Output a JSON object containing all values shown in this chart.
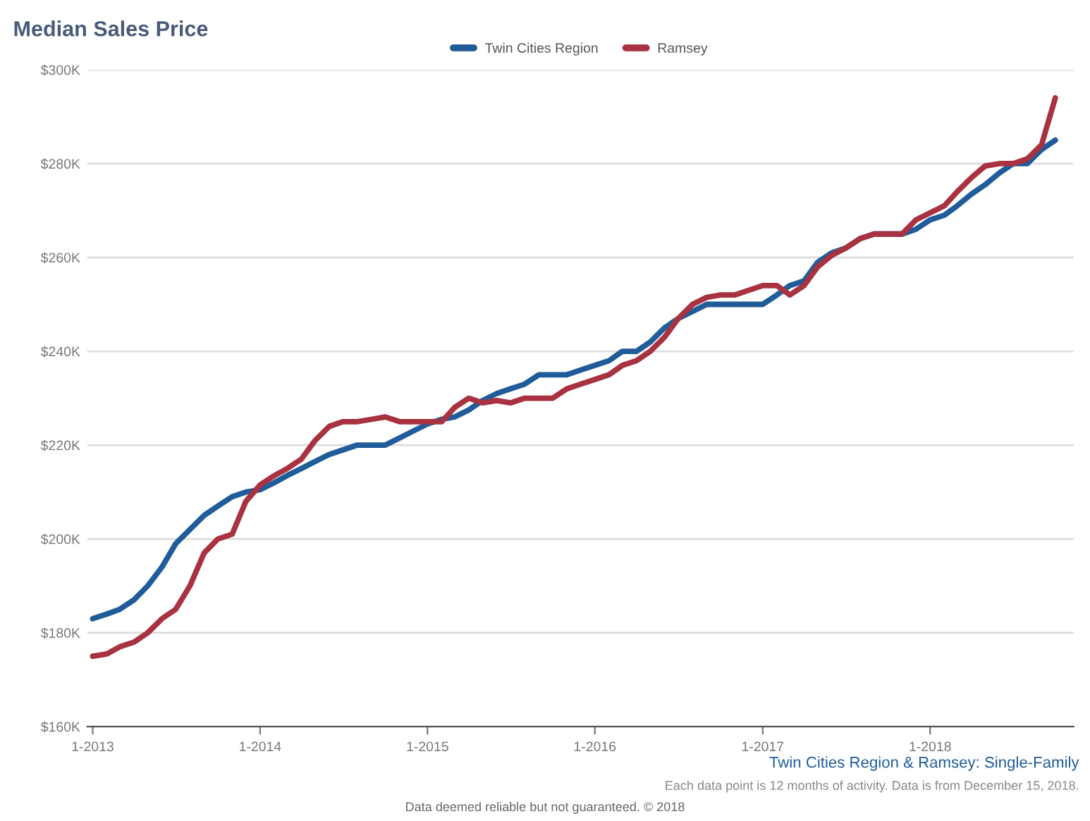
{
  "chart_data": {
    "type": "line",
    "title": "Median Sales Price",
    "x": [
      "2013-01",
      "2013-02",
      "2013-03",
      "2013-04",
      "2013-05",
      "2013-06",
      "2013-07",
      "2013-08",
      "2013-09",
      "2013-10",
      "2013-11",
      "2013-12",
      "2014-01",
      "2014-02",
      "2014-03",
      "2014-04",
      "2014-05",
      "2014-06",
      "2014-07",
      "2014-08",
      "2014-09",
      "2014-10",
      "2014-11",
      "2014-12",
      "2015-01",
      "2015-02",
      "2015-03",
      "2015-04",
      "2015-05",
      "2015-06",
      "2015-07",
      "2015-08",
      "2015-09",
      "2015-10",
      "2015-11",
      "2015-12",
      "2016-01",
      "2016-02",
      "2016-03",
      "2016-04",
      "2016-05",
      "2016-06",
      "2016-07",
      "2016-08",
      "2016-09",
      "2016-10",
      "2016-11",
      "2016-12",
      "2017-01",
      "2017-02",
      "2017-03",
      "2017-04",
      "2017-05",
      "2017-06",
      "2017-07",
      "2017-08",
      "2017-09",
      "2017-10",
      "2017-11",
      "2017-12",
      "2018-01",
      "2018-02",
      "2018-03",
      "2018-04",
      "2018-05",
      "2018-06",
      "2018-07",
      "2018-08",
      "2018-09",
      "2018-10"
    ],
    "series": [
      {
        "name": "Twin Cities Region",
        "color": "#1f5c99",
        "values": [
          183,
          184,
          185,
          187,
          190,
          194,
          199,
          202,
          205,
          207,
          209,
          210,
          210.5,
          212,
          213.5,
          215,
          216.5,
          218,
          219,
          220,
          220,
          220,
          221.5,
          223,
          224.5,
          225.5,
          226,
          227.5,
          229.5,
          231,
          232,
          233,
          235,
          235,
          235,
          236,
          237,
          238,
          240,
          240,
          242,
          245,
          247,
          248.5,
          250,
          250,
          250,
          250,
          250,
          252,
          254,
          255,
          259,
          261,
          262,
          264,
          265,
          265,
          265,
          266,
          268,
          269,
          271,
          273.5,
          275.5,
          278,
          280,
          280,
          283,
          285
        ]
      },
      {
        "name": "Ramsey",
        "color": "#a83240",
        "values": [
          175,
          175.5,
          177,
          178,
          180,
          183,
          185,
          190,
          197,
          200,
          201,
          208,
          211.5,
          213.5,
          215,
          217,
          221,
          224,
          225,
          225,
          225.5,
          226,
          225,
          225,
          225,
          225,
          228,
          230,
          229,
          229.5,
          229,
          230,
          230,
          230,
          232,
          233,
          234,
          235,
          237,
          238,
          240,
          243,
          247,
          250,
          251.5,
          252,
          252,
          253,
          254,
          254,
          252,
          254,
          258,
          260.5,
          262,
          264,
          265,
          265,
          265,
          268,
          269.5,
          271,
          274,
          277,
          279.5,
          280,
          280,
          281,
          284,
          294
        ]
      }
    ],
    "xlim": [
      "2012-12-20",
      "2018-11-10"
    ],
    "xticks": [
      {
        "value": "2013-01",
        "label": "1-2013"
      },
      {
        "value": "2014-01",
        "label": "1-2014"
      },
      {
        "value": "2015-01",
        "label": "1-2015"
      },
      {
        "value": "2016-01",
        "label": "1-2016"
      },
      {
        "value": "2017-01",
        "label": "1-2017"
      },
      {
        "value": "2018-01",
        "label": "1-2018"
      }
    ],
    "ylim": [
      160,
      300
    ],
    "yticks": [
      {
        "value": 160,
        "label": "$160K"
      },
      {
        "value": 180,
        "label": "$180K"
      },
      {
        "value": 200,
        "label": "$200K"
      },
      {
        "value": 220,
        "label": "$220K"
      },
      {
        "value": 240,
        "label": "$240K"
      },
      {
        "value": 260,
        "label": "$260K"
      },
      {
        "value": 280,
        "label": "$280K"
      },
      {
        "value": 300,
        "label": "$300K"
      }
    ],
    "grid": "y",
    "legend": "top",
    "marker": "none",
    "line_style": "solid",
    "annotations": [
      "Twin Cities Region & Ramsey: Single-Family",
      "Each data point is 12 months of activity. Data is from December 15, 2018.",
      "Data deemed reliable but not guaranteed. © 2018"
    ]
  }
}
